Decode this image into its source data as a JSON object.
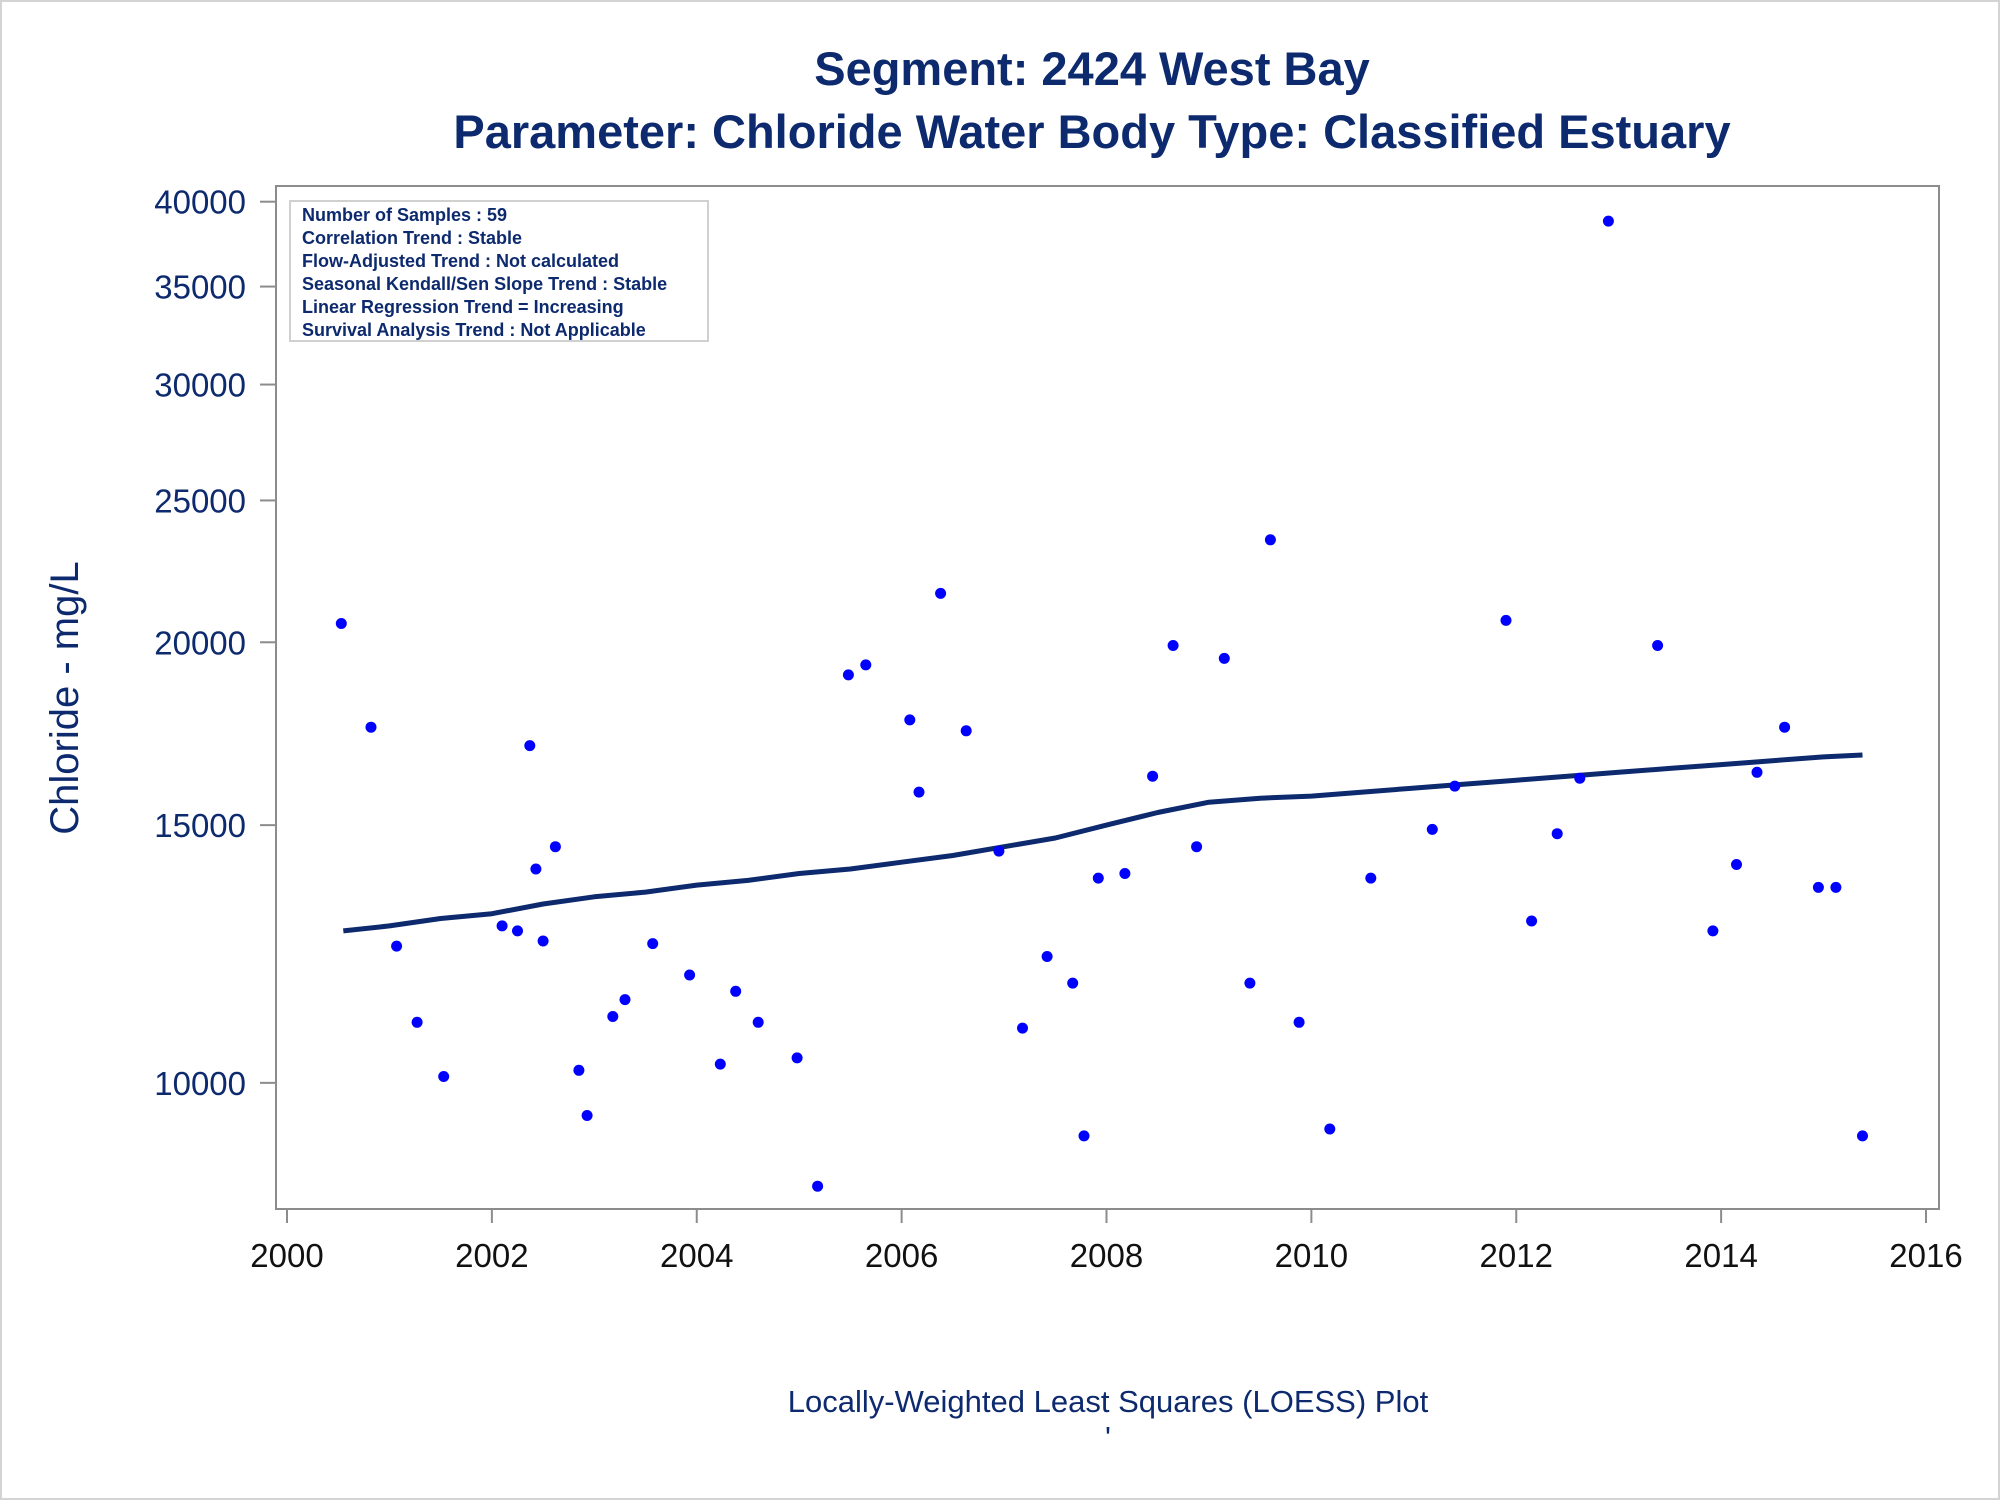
{
  "chart_data": {
    "type": "scatter",
    "title": "Segment: 2424  West Bay",
    "subtitle": "Parameter: Chloride   Water Body Type: Classified Estuary",
    "xlabel": "",
    "ylabel": "Chloride - mg/L",
    "footnote": "Locally-Weighted Least Squares (LOESS) Plot",
    "footnote_mark": "'",
    "y_scale": "log",
    "xlim": [
      2000,
      2016
    ],
    "ylim": [
      8200,
      41000
    ],
    "x_ticks": [
      2000,
      2002,
      2004,
      2006,
      2008,
      2010,
      2012,
      2014,
      2016
    ],
    "y_ticks": [
      10000,
      15000,
      20000,
      25000,
      30000,
      35000,
      40000
    ],
    "grid": false,
    "legend_placement": "top-left",
    "legend_lines": [
      "Number of Samples : 59",
      "Correlation Trend : Stable",
      "Flow-Adjusted Trend : Not calculated",
      "Seasonal Kendall/Sen Slope Trend : Stable",
      "Linear Regression Trend = Increasing",
      "Survival Analysis Trend : Not Applicable"
    ],
    "colors": {
      "points": "#0000ff",
      "loess": "#0d2a6e",
      "text": "#0d2a6e",
      "axis": "#8c8c8c"
    },
    "series": [
      {
        "type": "scatter",
        "points": [
          [
            2000.53,
            20600
          ],
          [
            2000.82,
            17500
          ],
          [
            2001.07,
            12400
          ],
          [
            2001.27,
            11000
          ],
          [
            2001.53,
            10100
          ],
          [
            2002.1,
            12800
          ],
          [
            2002.25,
            12700
          ],
          [
            2002.37,
            17000
          ],
          [
            2002.43,
            14000
          ],
          [
            2002.5,
            12500
          ],
          [
            2002.62,
            14500
          ],
          [
            2002.85,
            10200
          ],
          [
            2002.93,
            9500
          ],
          [
            2003.18,
            11100
          ],
          [
            2003.3,
            11400
          ],
          [
            2003.57,
            12450
          ],
          [
            2003.93,
            11850
          ],
          [
            2004.23,
            10300
          ],
          [
            2004.38,
            11550
          ],
          [
            2004.6,
            11000
          ],
          [
            2004.98,
            10400
          ],
          [
            2005.18,
            8500
          ],
          [
            2005.48,
            19000
          ],
          [
            2005.65,
            19300
          ],
          [
            2006.08,
            17700
          ],
          [
            2006.17,
            15800
          ],
          [
            2006.38,
            21600
          ],
          [
            2006.63,
            17400
          ],
          [
            2006.95,
            14400
          ],
          [
            2007.18,
            10900
          ],
          [
            2007.42,
            12200
          ],
          [
            2007.67,
            11700
          ],
          [
            2007.78,
            9200
          ],
          [
            2007.92,
            13800
          ],
          [
            2008.18,
            13900
          ],
          [
            2008.45,
            16200
          ],
          [
            2008.65,
            19900
          ],
          [
            2008.88,
            14500
          ],
          [
            2009.15,
            19500
          ],
          [
            2009.4,
            11700
          ],
          [
            2009.6,
            23500
          ],
          [
            2009.88,
            11000
          ],
          [
            2010.18,
            9300
          ],
          [
            2010.58,
            13800
          ],
          [
            2011.18,
            14900
          ],
          [
            2011.4,
            15950
          ],
          [
            2011.9,
            20700
          ],
          [
            2012.15,
            12900
          ],
          [
            2012.4,
            14800
          ],
          [
            2012.62,
            16150
          ],
          [
            2012.9,
            38800
          ],
          [
            2013.38,
            19900
          ],
          [
            2013.92,
            12700
          ],
          [
            2014.15,
            14100
          ],
          [
            2014.35,
            16300
          ],
          [
            2014.62,
            17500
          ],
          [
            2014.95,
            13600
          ],
          [
            2015.12,
            13600
          ],
          [
            2015.38,
            9200
          ]
        ]
      },
      {
        "type": "line",
        "name": "LOESS",
        "points": [
          [
            2000.55,
            12700
          ],
          [
            2001.0,
            12800
          ],
          [
            2001.5,
            12950
          ],
          [
            2002.0,
            13050
          ],
          [
            2002.5,
            13250
          ],
          [
            2003.0,
            13400
          ],
          [
            2003.5,
            13500
          ],
          [
            2004.0,
            13650
          ],
          [
            2004.5,
            13750
          ],
          [
            2005.0,
            13900
          ],
          [
            2005.5,
            14000
          ],
          [
            2006.0,
            14150
          ],
          [
            2006.5,
            14300
          ],
          [
            2007.0,
            14500
          ],
          [
            2007.5,
            14700
          ],
          [
            2008.0,
            15000
          ],
          [
            2008.5,
            15300
          ],
          [
            2009.0,
            15550
          ],
          [
            2009.5,
            15650
          ],
          [
            2010.0,
            15700
          ],
          [
            2010.5,
            15800
          ],
          [
            2011.0,
            15900
          ],
          [
            2011.5,
            16000
          ],
          [
            2012.0,
            16100
          ],
          [
            2012.5,
            16200
          ],
          [
            2013.0,
            16300
          ],
          [
            2013.5,
            16400
          ],
          [
            2014.0,
            16500
          ],
          [
            2014.5,
            16600
          ],
          [
            2015.0,
            16700
          ],
          [
            2015.38,
            16750
          ]
        ]
      }
    ]
  }
}
